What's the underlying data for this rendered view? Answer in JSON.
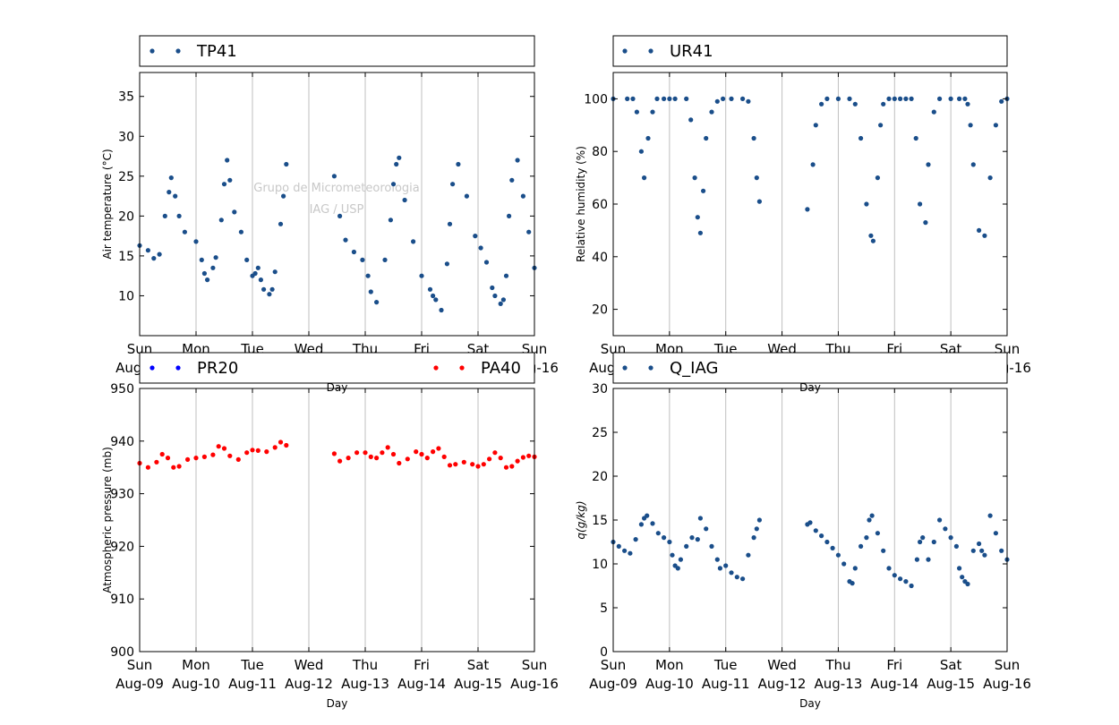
{
  "watermark": [
    "Grupo de Micrometeorologia",
    "IAG / USP"
  ],
  "colors": {
    "blue": "#1a4e8a",
    "red": "#ff0000",
    "pr20": "#0000ff",
    "grid": "#bfbfbf",
    "watermark": "#c8c8c8"
  },
  "x_axis": {
    "label": "Day",
    "ticks": [
      {
        "day": "Sun",
        "date": "Aug-09"
      },
      {
        "day": "Mon",
        "date": "Aug-10"
      },
      {
        "day": "Tue",
        "date": "Aug-11"
      },
      {
        "day": "Wed",
        "date": "Aug-12"
      },
      {
        "day": "Thu",
        "date": "Aug-13"
      },
      {
        "day": "Fri",
        "date": "Aug-14"
      },
      {
        "day": "Sat",
        "date": "Aug-15"
      },
      {
        "day": "Sun",
        "date": "Aug-16"
      }
    ]
  },
  "chart_data": [
    {
      "type": "scatter",
      "id": "tp41",
      "ylabel": "Air temperature (°C)",
      "ylim": [
        5,
        38
      ],
      "yticks": [
        10,
        15,
        20,
        25,
        30,
        35
      ],
      "xlim": [
        "Aug-09",
        "Aug-16"
      ],
      "grid": "vertical",
      "legend_position": "top",
      "series": [
        {
          "name": "TP41",
          "color": "#1a4e8a",
          "x": [
            0,
            0.15,
            0.25,
            0.35,
            0.45,
            0.52,
            0.56,
            0.63,
            0.7,
            0.8,
            1.0,
            1.1,
            1.15,
            1.2,
            1.3,
            1.35,
            1.45,
            1.5,
            1.55,
            1.6,
            1.68,
            1.8,
            1.9,
            2.0,
            2.05,
            2.1,
            2.15,
            2.2,
            2.3,
            2.35,
            2.4,
            2.5,
            2.55,
            2.6,
            3.45,
            3.55,
            3.65,
            3.8,
            3.95,
            4.05,
            4.1,
            4.2,
            4.35,
            4.45,
            4.5,
            4.55,
            4.6,
            4.7,
            4.85,
            5.0,
            5.15,
            5.2,
            5.25,
            5.35,
            5.45,
            5.5,
            5.55,
            5.65,
            5.8,
            5.95,
            6.05,
            6.15,
            6.25,
            6.3,
            6.4,
            6.45,
            6.5,
            6.55,
            6.6,
            6.7,
            6.8,
            6.9,
            7.0
          ],
          "y": [
            16.3,
            15.7,
            14.7,
            15.2,
            20.0,
            23.0,
            24.8,
            22.5,
            20.0,
            18.0,
            16.8,
            14.5,
            12.8,
            12.0,
            13.5,
            14.8,
            19.5,
            24.0,
            27.0,
            24.5,
            20.5,
            18.0,
            14.5,
            12.5,
            12.8,
            13.5,
            12.0,
            10.8,
            10.2,
            10.8,
            13.0,
            19.0,
            22.5,
            26.5,
            25.0,
            20.0,
            17.0,
            15.5,
            14.5,
            12.5,
            10.5,
            9.2,
            14.5,
            19.5,
            24.0,
            26.5,
            27.3,
            22.0,
            16.8,
            12.5,
            10.8,
            10.0,
            9.5,
            8.2,
            14.0,
            19.0,
            24.0,
            26.5,
            22.5,
            17.5,
            16.0,
            14.2,
            11.0,
            10.0,
            9.0,
            9.5,
            12.5,
            20.0,
            24.5,
            27.0,
            22.5,
            18.0,
            13.5
          ]
        }
      ]
    },
    {
      "type": "scatter",
      "id": "ur41",
      "ylabel": "Relative humidity (%)",
      "ylim": [
        10,
        110
      ],
      "yticks": [
        20,
        40,
        60,
        80,
        100
      ],
      "xlim": [
        "Aug-09",
        "Aug-16"
      ],
      "grid": "vertical",
      "legend_position": "top",
      "series": [
        {
          "name": "UR41",
          "color": "#1a4e8a",
          "x": [
            0,
            0.25,
            0.35,
            0.42,
            0.5,
            0.55,
            0.62,
            0.7,
            0.78,
            0.9,
            1.0,
            1.1,
            1.3,
            1.38,
            1.45,
            1.5,
            1.55,
            1.6,
            1.65,
            1.75,
            1.85,
            1.95,
            2.1,
            2.3,
            2.4,
            2.5,
            2.55,
            2.6,
            3.45,
            3.55,
            3.6,
            3.7,
            3.8,
            4.0,
            4.2,
            4.3,
            4.4,
            4.5,
            4.58,
            4.62,
            4.7,
            4.75,
            4.8,
            4.9,
            5.0,
            5.1,
            5.2,
            5.3,
            5.38,
            5.45,
            5.55,
            5.6,
            5.7,
            5.8,
            6.0,
            6.15,
            6.25,
            6.3,
            6.35,
            6.4,
            6.5,
            6.6,
            6.7,
            6.8,
            6.9,
            7.0
          ],
          "y": [
            100,
            100,
            100,
            95,
            80,
            70,
            85,
            95,
            100,
            100,
            100,
            100,
            100,
            92,
            70,
            55,
            49,
            65,
            85,
            95,
            99,
            100,
            100,
            100,
            99,
            85,
            70,
            61,
            58,
            75,
            90,
            98,
            100,
            100,
            100,
            98,
            85,
            60,
            48,
            46,
            70,
            90,
            98,
            100,
            100,
            100,
            100,
            100,
            85,
            60,
            53,
            75,
            95,
            100,
            100,
            100,
            100,
            98,
            90,
            75,
            50,
            48,
            70,
            90,
            99,
            100
          ]
        }
      ]
    },
    {
      "type": "scatter",
      "id": "pressure",
      "ylabel": "Atmospheric pressure (mb)",
      "ylim": [
        900,
        950
      ],
      "yticks": [
        900,
        910,
        920,
        930,
        940,
        950
      ],
      "xlim": [
        "Aug-09",
        "Aug-16"
      ],
      "grid": "vertical",
      "legend_position": "top",
      "series": [
        {
          "name": "PR20",
          "color": "#0000ff",
          "x": [],
          "y": []
        },
        {
          "name": "PA40",
          "color": "#ff0000",
          "x": [
            0,
            0.15,
            0.3,
            0.4,
            0.5,
            0.6,
            0.7,
            0.85,
            1.0,
            1.15,
            1.3,
            1.4,
            1.5,
            1.6,
            1.75,
            1.9,
            2.0,
            2.1,
            2.25,
            2.4,
            2.5,
            2.6,
            3.45,
            3.55,
            3.7,
            3.85,
            4.0,
            4.1,
            4.2,
            4.3,
            4.4,
            4.5,
            4.6,
            4.75,
            4.9,
            5.0,
            5.1,
            5.2,
            5.3,
            5.4,
            5.5,
            5.6,
            5.75,
            5.9,
            6.0,
            6.1,
            6.2,
            6.3,
            6.4,
            6.5,
            6.6,
            6.7,
            6.8,
            6.9,
            7.0
          ],
          "y": [
            935.8,
            935.0,
            936.0,
            937.5,
            936.8,
            935.0,
            935.2,
            936.5,
            936.8,
            937.0,
            937.4,
            939.0,
            938.6,
            937.2,
            936.5,
            937.8,
            938.3,
            938.2,
            938.0,
            938.8,
            939.8,
            939.2,
            937.6,
            936.2,
            936.8,
            937.8,
            937.8,
            937.0,
            936.8,
            937.8,
            938.8,
            937.5,
            935.8,
            936.6,
            938.0,
            937.5,
            936.8,
            938.0,
            938.6,
            937.0,
            935.4,
            935.6,
            936.0,
            935.6,
            935.2,
            935.6,
            936.6,
            937.8,
            936.8,
            935.0,
            935.2,
            936.2,
            936.9,
            937.2,
            937.0
          ]
        }
      ]
    },
    {
      "type": "scatter",
      "id": "q_iag",
      "ylabel": "q(g/kg)",
      "ylim": [
        0,
        30
      ],
      "yticks": [
        0,
        5,
        10,
        15,
        20,
        25,
        30
      ],
      "xlim": [
        "Aug-09",
        "Aug-16"
      ],
      "grid": "vertical",
      "legend_position": "top",
      "series": [
        {
          "name": "Q_IAG",
          "color": "#1a4e8a",
          "x": [
            0,
            0.1,
            0.2,
            0.3,
            0.4,
            0.5,
            0.55,
            0.6,
            0.7,
            0.8,
            0.9,
            1.0,
            1.05,
            1.1,
            1.15,
            1.2,
            1.3,
            1.4,
            1.5,
            1.55,
            1.65,
            1.75,
            1.85,
            1.9,
            2.0,
            2.1,
            2.2,
            2.3,
            2.4,
            2.5,
            2.55,
            2.6,
            3.45,
            3.5,
            3.6,
            3.7,
            3.8,
            3.9,
            4.0,
            4.1,
            4.2,
            4.25,
            4.3,
            4.4,
            4.5,
            4.55,
            4.6,
            4.7,
            4.8,
            4.9,
            5.0,
            5.1,
            5.2,
            5.3,
            5.4,
            5.45,
            5.5,
            5.6,
            5.7,
            5.8,
            5.9,
            6.0,
            6.1,
            6.15,
            6.2,
            6.25,
            6.3,
            6.4,
            6.5,
            6.55,
            6.6,
            6.7,
            6.8,
            6.9,
            7.0
          ],
          "y": [
            12.5,
            12.0,
            11.5,
            11.2,
            12.8,
            14.5,
            15.2,
            15.5,
            14.6,
            13.5,
            13.0,
            12.5,
            11.0,
            9.8,
            9.5,
            10.5,
            12.0,
            13.0,
            12.8,
            15.2,
            14.0,
            12.0,
            10.5,
            9.5,
            9.8,
            9.0,
            8.5,
            8.3,
            11.0,
            13.0,
            14.0,
            15.0,
            14.5,
            14.7,
            13.8,
            13.2,
            12.5,
            11.8,
            11.0,
            10.0,
            8.0,
            7.8,
            9.5,
            12.0,
            13.0,
            15.0,
            15.5,
            13.5,
            11.5,
            9.5,
            8.7,
            8.3,
            8.0,
            7.5,
            10.5,
            12.5,
            13.0,
            10.5,
            12.5,
            15.0,
            14.0,
            13.0,
            12.0,
            9.5,
            8.5,
            8.0,
            7.7,
            11.5,
            12.3,
            11.5,
            11.0,
            15.5,
            13.5,
            11.5,
            10.5
          ]
        }
      ]
    }
  ]
}
